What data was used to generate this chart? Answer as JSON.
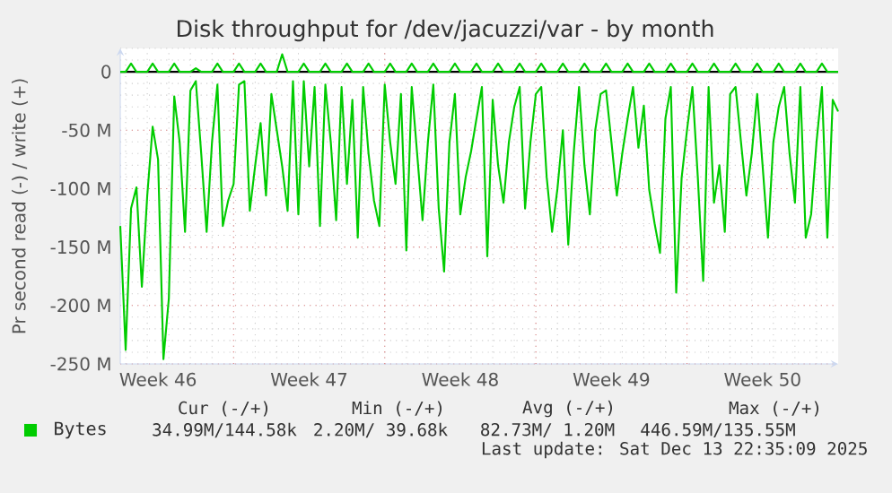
{
  "chart_data": {
    "type": "line",
    "title": "Disk throughput for /dev/jacuzzi/var - by month",
    "ylabel": "Pr second read (-) / write (+)",
    "categories": [
      null,
      null,
      null,
      null,
      null,
      null,
      null,
      "Week 46",
      null,
      null,
      null,
      null,
      null,
      null,
      null,
      null,
      null,
      null,
      null,
      null,
      null,
      null,
      null,
      null,
      null,
      null,
      null,
      null,
      null,
      null,
      null,
      null,
      null,
      null,
      null,
      "Week 47",
      null,
      null,
      null,
      null,
      null,
      null,
      null,
      null,
      null,
      null,
      null,
      null,
      null,
      null,
      null,
      null,
      null,
      null,
      null,
      null,
      null,
      null,
      null,
      null,
      null,
      null,
      null,
      "Week 48",
      null,
      null,
      null,
      null,
      null,
      null,
      null,
      null,
      null,
      null,
      null,
      null,
      null,
      null,
      null,
      null,
      null,
      null,
      null,
      null,
      null,
      null,
      null,
      null,
      null,
      null,
      null,
      "Week 49",
      null,
      null,
      null,
      null,
      null,
      null,
      null,
      null,
      null,
      null,
      null,
      null,
      null,
      null,
      null,
      null,
      null,
      null,
      null,
      null,
      null,
      null,
      null,
      null,
      null,
      null,
      null,
      "Week 50",
      null,
      null,
      null,
      null,
      null,
      null,
      null,
      null,
      null,
      null,
      null,
      null,
      null,
      null
    ],
    "ylim": [
      -250,
      20
    ],
    "yticks": [
      0,
      {
        "value": -50,
        "label": "-50 M"
      },
      {
        "value": -100,
        "label": "-100 M"
      },
      {
        "value": -150,
        "label": "-150 M"
      },
      {
        "value": -200,
        "label": "-200 M"
      },
      {
        "value": -250,
        "label": "-250 M"
      }
    ],
    "grid": true,
    "legend": "bottom",
    "marker": "none",
    "line_style": "solid",
    "ref_lines": [
      {
        "axis": "y",
        "value": 0,
        "color": "#000000"
      }
    ],
    "series": [
      {
        "name": "Bytes",
        "color": "#00cc00",
        "values": [
          -132,
          -238,
          -117,
          -99,
          -184,
          -106,
          -47,
          -75,
          -246,
          -194,
          -21,
          -60,
          -137,
          -16,
          -8,
          -70,
          -137,
          -60,
          -11,
          -132,
          -110,
          -96,
          -11,
          -8,
          -119,
          -80,
          -44,
          -106,
          -19,
          -50,
          -81,
          -119,
          -8,
          -122,
          -8,
          -81,
          -13,
          -132,
          -11,
          -60,
          -127,
          -13,
          -96,
          -24,
          -142,
          -13,
          -70,
          -110,
          -132,
          -11,
          -60,
          -96,
          -19,
          -153,
          -13,
          -70,
          -127,
          -60,
          -11,
          -117,
          -171,
          -60,
          -19,
          -122,
          -90,
          -68,
          -40,
          -13,
          -158,
          -24,
          -80,
          -112,
          -60,
          -30,
          -13,
          -117,
          -60,
          -19,
          -13,
          -90,
          -137,
          -100,
          -50,
          -148,
          -70,
          -13,
          -80,
          -122,
          -50,
          -19,
          -16,
          -60,
          -106,
          -70,
          -40,
          -13,
          -65,
          -29,
          -101,
          -130,
          -155,
          -40,
          -13,
          -189,
          -91,
          -50,
          -13,
          -90,
          -179,
          -13,
          -112,
          -80,
          -137,
          -19,
          -13,
          -60,
          -106,
          -70,
          -19,
          -80,
          -142,
          -60,
          -30,
          -13,
          -70,
          -112,
          -13,
          -142,
          -122,
          -60,
          -13,
          -142,
          -24,
          -34
        ]
      },
      {
        "color": "#00cc00",
        "values": [
          0,
          0,
          7,
          0,
          0,
          0,
          7,
          0,
          0,
          0,
          7,
          0,
          0,
          0,
          3,
          0,
          0,
          0,
          7,
          0,
          0,
          0,
          7,
          0,
          0,
          0,
          7,
          0,
          0,
          0,
          15,
          0,
          0,
          0,
          7,
          0,
          0,
          0,
          7,
          0,
          0,
          0,
          7,
          0,
          0,
          0,
          7,
          0,
          0,
          0,
          7,
          0,
          0,
          0,
          7,
          0,
          0,
          0,
          7,
          0,
          0,
          0,
          7,
          0,
          0,
          0,
          7,
          0,
          0,
          0,
          7,
          0,
          0,
          0,
          7,
          0,
          0,
          0,
          7,
          0,
          0,
          0,
          7,
          0,
          0,
          0,
          7,
          0,
          0,
          0,
          7,
          0,
          0,
          0,
          7,
          0,
          0,
          0,
          7,
          0,
          0,
          0,
          7,
          0,
          0,
          0,
          7,
          0,
          0,
          0,
          7,
          0,
          0,
          0,
          7,
          0,
          0,
          0,
          7,
          0,
          0,
          0,
          7,
          0,
          0,
          0,
          7,
          0,
          0,
          0,
          7,
          0,
          0,
          0
        ]
      }
    ],
    "annotations": [
      "Cur (-/+)",
      "Min (-/+)",
      "Avg (-/+)",
      "Max (-/+)",
      "34.99M/144.58k",
      "2.20M/ 39.68k",
      "82.73M/ 1.20M",
      "446.59M/135.55M",
      "Last update: Sat Dec 13 22:35:09 2025"
    ]
  }
}
